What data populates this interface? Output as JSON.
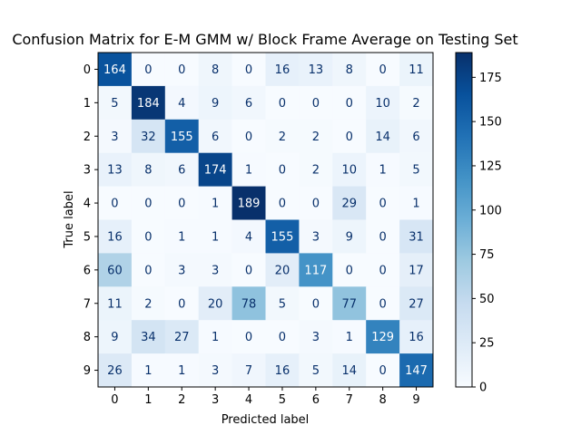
{
  "chart_data": {
    "type": "heatmap",
    "title": "Confusion Matrix for E-M GMM w/ Block Frame Average on Testing Set",
    "xlabel": "Predicted label",
    "ylabel": "True label",
    "x_categories": [
      "0",
      "1",
      "2",
      "3",
      "4",
      "5",
      "6",
      "7",
      "8",
      "9"
    ],
    "y_categories": [
      "0",
      "1",
      "2",
      "3",
      "4",
      "5",
      "6",
      "7",
      "8",
      "9"
    ],
    "values": [
      [
        164,
        0,
        0,
        8,
        0,
        16,
        13,
        8,
        0,
        11
      ],
      [
        5,
        184,
        4,
        9,
        6,
        0,
        0,
        0,
        10,
        2
      ],
      [
        3,
        32,
        155,
        6,
        0,
        2,
        2,
        0,
        14,
        6
      ],
      [
        13,
        8,
        6,
        174,
        1,
        0,
        2,
        10,
        1,
        5
      ],
      [
        0,
        0,
        0,
        1,
        189,
        0,
        0,
        29,
        0,
        1
      ],
      [
        16,
        0,
        1,
        1,
        4,
        155,
        3,
        9,
        0,
        31
      ],
      [
        60,
        0,
        3,
        3,
        0,
        20,
        117,
        0,
        0,
        17
      ],
      [
        11,
        2,
        0,
        20,
        78,
        5,
        0,
        77,
        0,
        27
      ],
      [
        9,
        34,
        27,
        1,
        0,
        0,
        3,
        1,
        129,
        16
      ],
      [
        26,
        1,
        1,
        3,
        7,
        16,
        5,
        14,
        0,
        147
      ]
    ],
    "colormap": "Blues",
    "vmin": 0,
    "vmax": 189,
    "colorbar_ticks": [
      0,
      25,
      50,
      75,
      100,
      125,
      150,
      175
    ]
  }
}
